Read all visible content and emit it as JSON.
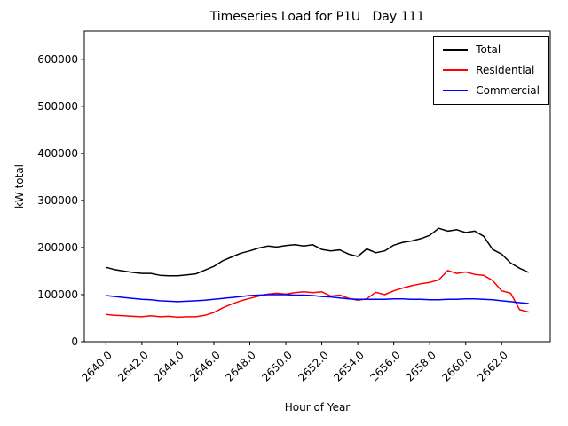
{
  "chart_data": {
    "type": "line",
    "title": "Timeseries Load for P1U   Day 111",
    "xlabel": "Hour of Year",
    "ylabel": "kW total",
    "grid": false,
    "legend_position": "upper right",
    "xlim": [
      2638.8,
      2664.7
    ],
    "ylim": [
      0,
      660000
    ],
    "x_ticks": [
      2640,
      2642,
      2644,
      2646,
      2648,
      2650,
      2652,
      2654,
      2656,
      2658,
      2660,
      2662
    ],
    "x_tick_labels": [
      "2640.0",
      "2642.0",
      "2644.0",
      "2646.0",
      "2648.0",
      "2650.0",
      "2652.0",
      "2654.0",
      "2656.0",
      "2658.0",
      "2660.0",
      "2662.0"
    ],
    "y_ticks": [
      0,
      100000,
      200000,
      300000,
      400000,
      500000,
      600000
    ],
    "y_tick_labels": [
      "0",
      "100000",
      "200000",
      "300000",
      "400000",
      "500000",
      "600000"
    ],
    "x": [
      2640.0,
      2640.5,
      2641.0,
      2641.5,
      2642.0,
      2642.5,
      2643.0,
      2643.5,
      2644.0,
      2644.5,
      2645.0,
      2645.5,
      2646.0,
      2646.5,
      2647.0,
      2647.5,
      2648.0,
      2648.5,
      2649.0,
      2649.5,
      2650.0,
      2650.5,
      2651.0,
      2651.5,
      2652.0,
      2652.5,
      2653.0,
      2653.5,
      2654.0,
      2654.5,
      2655.0,
      2655.5,
      2656.0,
      2656.5,
      2657.0,
      2657.5,
      2658.0,
      2658.5,
      2659.0,
      2659.5,
      2660.0,
      2660.5,
      2661.0,
      2661.5,
      2662.0,
      2662.5,
      2663.0,
      2663.5
    ],
    "series": [
      {
        "name": "Total",
        "color": "#000000",
        "values": [
          158000,
          153000,
          150000,
          147000,
          145000,
          145000,
          141000,
          140000,
          140000,
          142000,
          144000,
          152000,
          160000,
          172000,
          180000,
          188000,
          193000,
          199000,
          203000,
          201000,
          204000,
          206000,
          203000,
          206000,
          196000,
          193000,
          195000,
          186000,
          181000,
          197000,
          189000,
          193000,
          205000,
          211000,
          214000,
          219000,
          226000,
          241000,
          235000,
          238000,
          232000,
          235000,
          224000,
          196000,
          186000,
          167000,
          156000,
          147000
        ]
      },
      {
        "name": "Residential",
        "color": "#ff0000",
        "values": [
          58000,
          56000,
          55000,
          54000,
          53000,
          55000,
          53000,
          54000,
          52000,
          53000,
          53000,
          56000,
          62000,
          72000,
          80000,
          87000,
          92000,
          97000,
          101000,
          103000,
          101000,
          104000,
          106000,
          104000,
          106000,
          97000,
          99000,
          92000,
          88000,
          91000,
          105000,
          100000,
          108000,
          114000,
          119000,
          123000,
          126000,
          131000,
          151000,
          145000,
          148000,
          143000,
          141000,
          130000,
          108000,
          103000,
          68000,
          63000
        ]
      },
      {
        "name": "Commercial",
        "color": "#0000ff",
        "values": [
          98000,
          96000,
          94000,
          92000,
          90000,
          89000,
          87000,
          86000,
          85000,
          86000,
          87000,
          88000,
          90000,
          92000,
          94000,
          96000,
          98000,
          99000,
          100000,
          100000,
          100000,
          99000,
          99000,
          98000,
          96000,
          95000,
          93000,
          91000,
          90000,
          90000,
          90000,
          90000,
          91000,
          91000,
          90000,
          90000,
          89000,
          89000,
          90000,
          90000,
          91000,
          91000,
          90000,
          89000,
          87000,
          85000,
          83000,
          81000
        ]
      }
    ]
  }
}
